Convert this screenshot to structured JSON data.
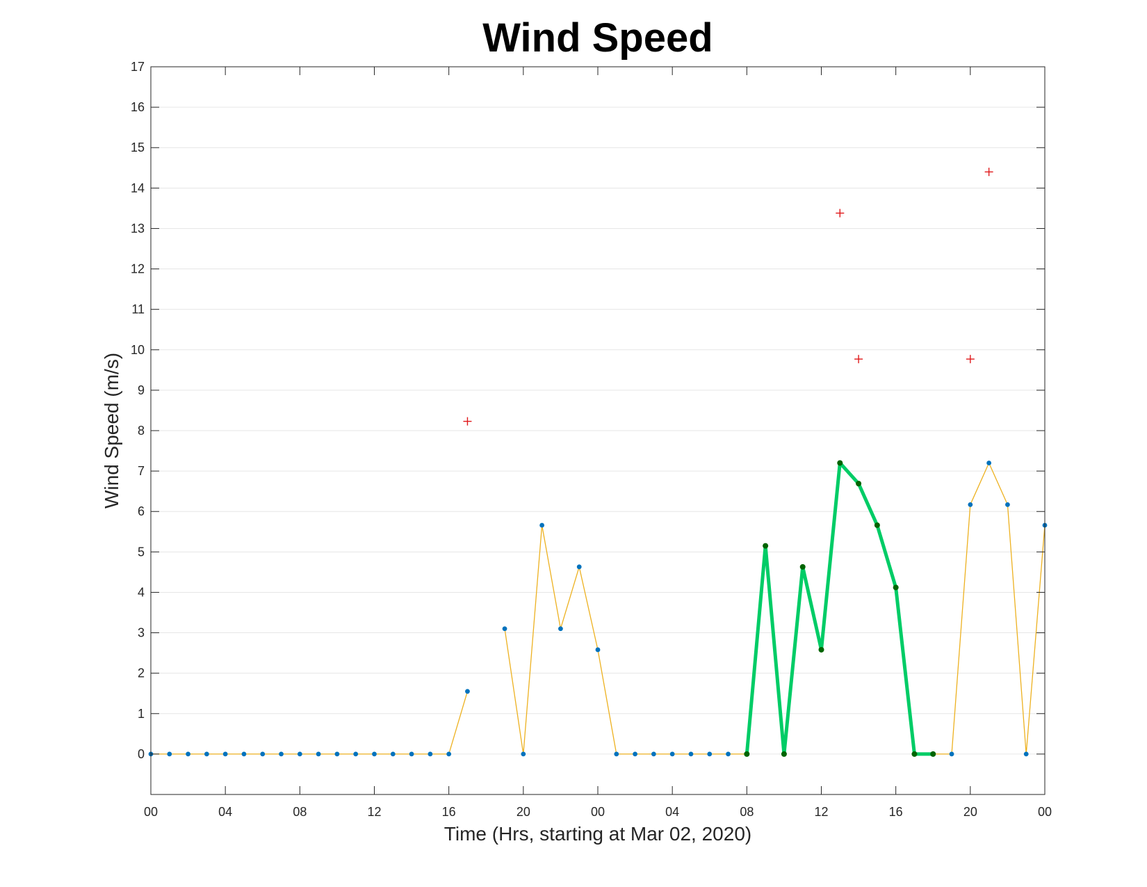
{
  "chart_data": {
    "type": "line",
    "title": "Wind Speed",
    "xlabel": "Time (Hrs, starting at Mar 02, 2020)",
    "ylabel": "Wind Speed (m/s)",
    "x_hour_range": [
      0,
      48
    ],
    "ylim": [
      -1,
      17
    ],
    "yticks": [
      0,
      1,
      2,
      3,
      4,
      5,
      6,
      7,
      8,
      9,
      10,
      11,
      12,
      13,
      14,
      15,
      16,
      17
    ],
    "xtick_labels": [
      "00",
      "04",
      "08",
      "12",
      "16",
      "20",
      "00",
      "04",
      "08",
      "12",
      "16",
      "20",
      "00"
    ],
    "grid": "horizontal",
    "colors": {
      "line": "#EDB120",
      "markers": "#0072BD",
      "highlight_line": "#00CC66",
      "highlight_markers": "#006400",
      "outliers": "#E0191B",
      "grid": "#e6e6e6",
      "axes": "#262626"
    },
    "series": [
      {
        "x": [
          0,
          1,
          2,
          3,
          4,
          5,
          6,
          7,
          8,
          9,
          10,
          11,
          12,
          13,
          14,
          15,
          16,
          17,
          19,
          20,
          21,
          22,
          23,
          24,
          25,
          26,
          27,
          28,
          29,
          30,
          31,
          32,
          33,
          34,
          35,
          36,
          37,
          38,
          39,
          40,
          41,
          42,
          43,
          44,
          45,
          46,
          47,
          48
        ],
        "y": [
          0,
          0,
          0,
          0,
          0,
          0,
          0,
          0,
          0,
          0,
          0,
          0,
          0,
          0,
          0,
          0,
          0,
          1.55,
          3.1,
          0,
          5.66,
          3.1,
          4.63,
          2.58,
          0,
          0,
          0,
          0,
          0,
          0,
          0,
          0,
          5.15,
          0,
          4.63,
          2.58,
          7.2,
          6.69,
          5.66,
          4.12,
          0,
          0,
          0,
          6.17,
          7.2,
          6.17,
          0,
          5.66
        ],
        "segments": [
          [
            0,
            17
          ],
          [
            19,
            48
          ]
        ]
      },
      {
        "x": [
          32,
          33,
          34,
          35,
          36,
          37,
          38,
          39,
          40,
          41,
          42
        ],
        "y": [
          0,
          5.15,
          0,
          4.63,
          2.58,
          7.2,
          6.69,
          5.66,
          4.12,
          0,
          0
        ]
      },
      {
        "x": [
          17,
          37,
          38,
          44,
          45
        ],
        "y": [
          8.23,
          13.38,
          9.77,
          9.77,
          14.4
        ]
      }
    ]
  }
}
